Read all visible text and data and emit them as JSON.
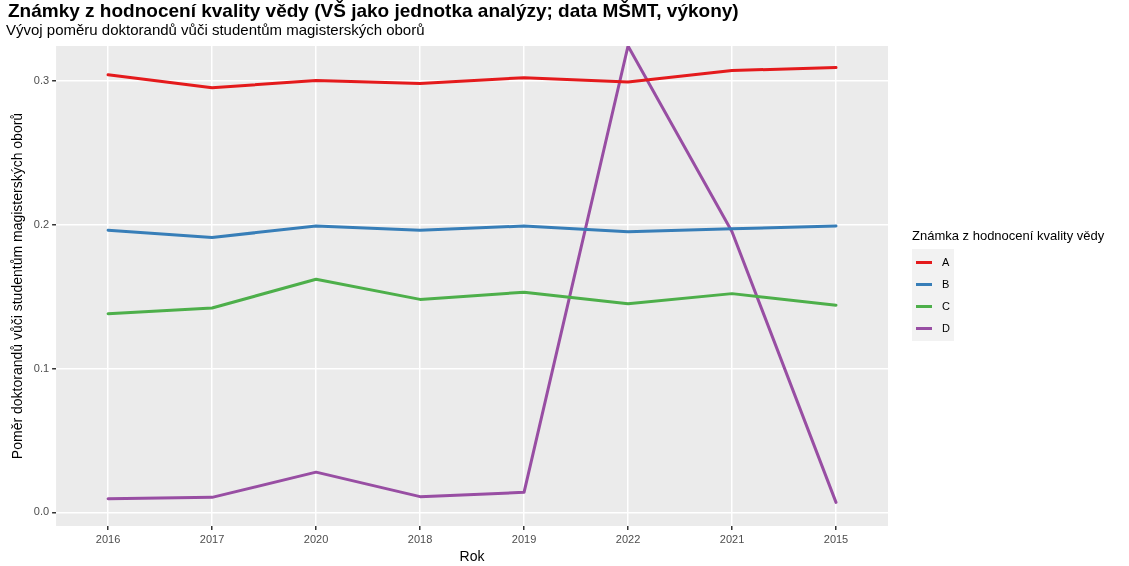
{
  "chart_data": {
    "type": "line",
    "title": "Známky z hodnocení kvality vědy (VŠ jako jednotka analýzy; data MŠMT, výkony)",
    "subtitle": "Vývoj poměru doktorandů vůči studentům magisterských oborů",
    "xlabel": "Rok",
    "ylabel": "Poměr doktorandů vůči studentům magisterských oborů",
    "legend_title": "Známka z hodnocení kvality vědy",
    "categories": [
      "2016",
      "2017",
      "2020",
      "2018",
      "2019",
      "2022",
      "2021",
      "2015"
    ],
    "series": [
      {
        "name": "A",
        "color": "#e41a1c",
        "values": [
          0.304,
          0.295,
          0.3,
          0.298,
          0.302,
          0.299,
          0.307,
          0.309
        ]
      },
      {
        "name": "B",
        "color": "#377eb8",
        "values": [
          0.196,
          0.191,
          0.199,
          0.196,
          0.199,
          0.195,
          0.197,
          0.199
        ]
      },
      {
        "name": "C",
        "color": "#4daf4a",
        "values": [
          0.138,
          0.142,
          0.162,
          0.148,
          0.153,
          0.145,
          0.152,
          0.144
        ]
      },
      {
        "name": "D",
        "color": "#984ea3",
        "values": [
          0.0095,
          0.0105,
          0.028,
          0.011,
          0.014,
          0.324,
          0.195,
          0.007
        ]
      }
    ],
    "ylim": [
      -0.0094,
      0.324
    ],
    "yticks": [
      {
        "value": 0,
        "label": "0.0"
      },
      0.1,
      0.2,
      0.3
    ],
    "grid": true,
    "legend": "right",
    "marker": "none",
    "line_style": "solid"
  }
}
